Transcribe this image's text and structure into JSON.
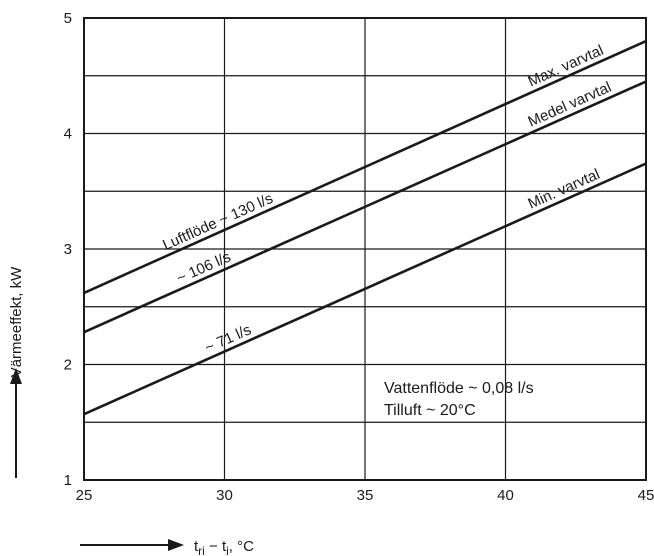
{
  "chart_data": {
    "type": "line",
    "x_range": [
      25,
      45
    ],
    "y_range": [
      1,
      5
    ],
    "x_ticks": [
      "25",
      "30",
      "35",
      "40",
      "45"
    ],
    "y_ticks": [
      "1",
      "2",
      "3",
      "4",
      "5"
    ],
    "ylabel": "Värmeeffekt, kW",
    "xlabel": {
      "base": "t",
      "sub": "ri",
      "mid": " − t",
      "sub2": "i",
      "unit": ", °C"
    },
    "grid": true,
    "series": [
      {
        "name": "Max. varvtal",
        "flow_label": "Luftflöde ~ 130 l/s",
        "x": [
          25,
          45
        ],
        "y": [
          2.62,
          4.8
        ]
      },
      {
        "name": "Medel varvtal",
        "flow_label": "~ 106 l/s",
        "x": [
          25,
          45
        ],
        "y": [
          2.28,
          4.45
        ]
      },
      {
        "name": "Min. varvtal",
        "flow_label": "~ 71 l/s",
        "x": [
          25,
          45
        ],
        "y": [
          1.57,
          3.74
        ]
      }
    ],
    "annotations": [
      "Vattenflöde ~ 0,08 l/s",
      "Tilluft ~ 20°C"
    ]
  }
}
